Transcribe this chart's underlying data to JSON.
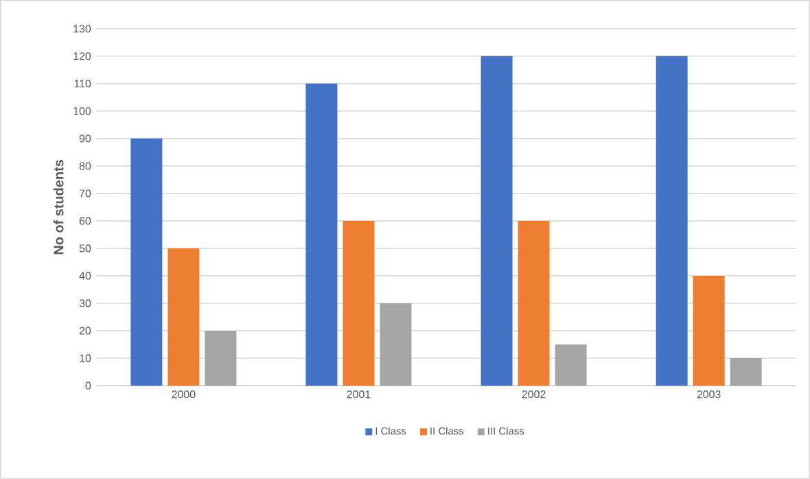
{
  "chart_data": {
    "type": "bar",
    "ylabel": "No of students",
    "categories": [
      "2000",
      "2001",
      "2002",
      "2003"
    ],
    "series": [
      {
        "name": "I Class",
        "color": "#4472c4",
        "values": [
          90,
          110,
          120,
          120
        ]
      },
      {
        "name": "II Class",
        "color": "#ed7d31",
        "values": [
          50,
          60,
          60,
          40
        ]
      },
      {
        "name": "III Class",
        "color": "#a5a5a5",
        "values": [
          20,
          30,
          15,
          10
        ]
      }
    ],
    "ylim": [
      0,
      130
    ],
    "yticks": [
      0,
      10,
      20,
      30,
      40,
      50,
      60,
      70,
      80,
      90,
      100,
      110,
      120,
      130
    ],
    "grid": "y",
    "legend": "bottom"
  }
}
